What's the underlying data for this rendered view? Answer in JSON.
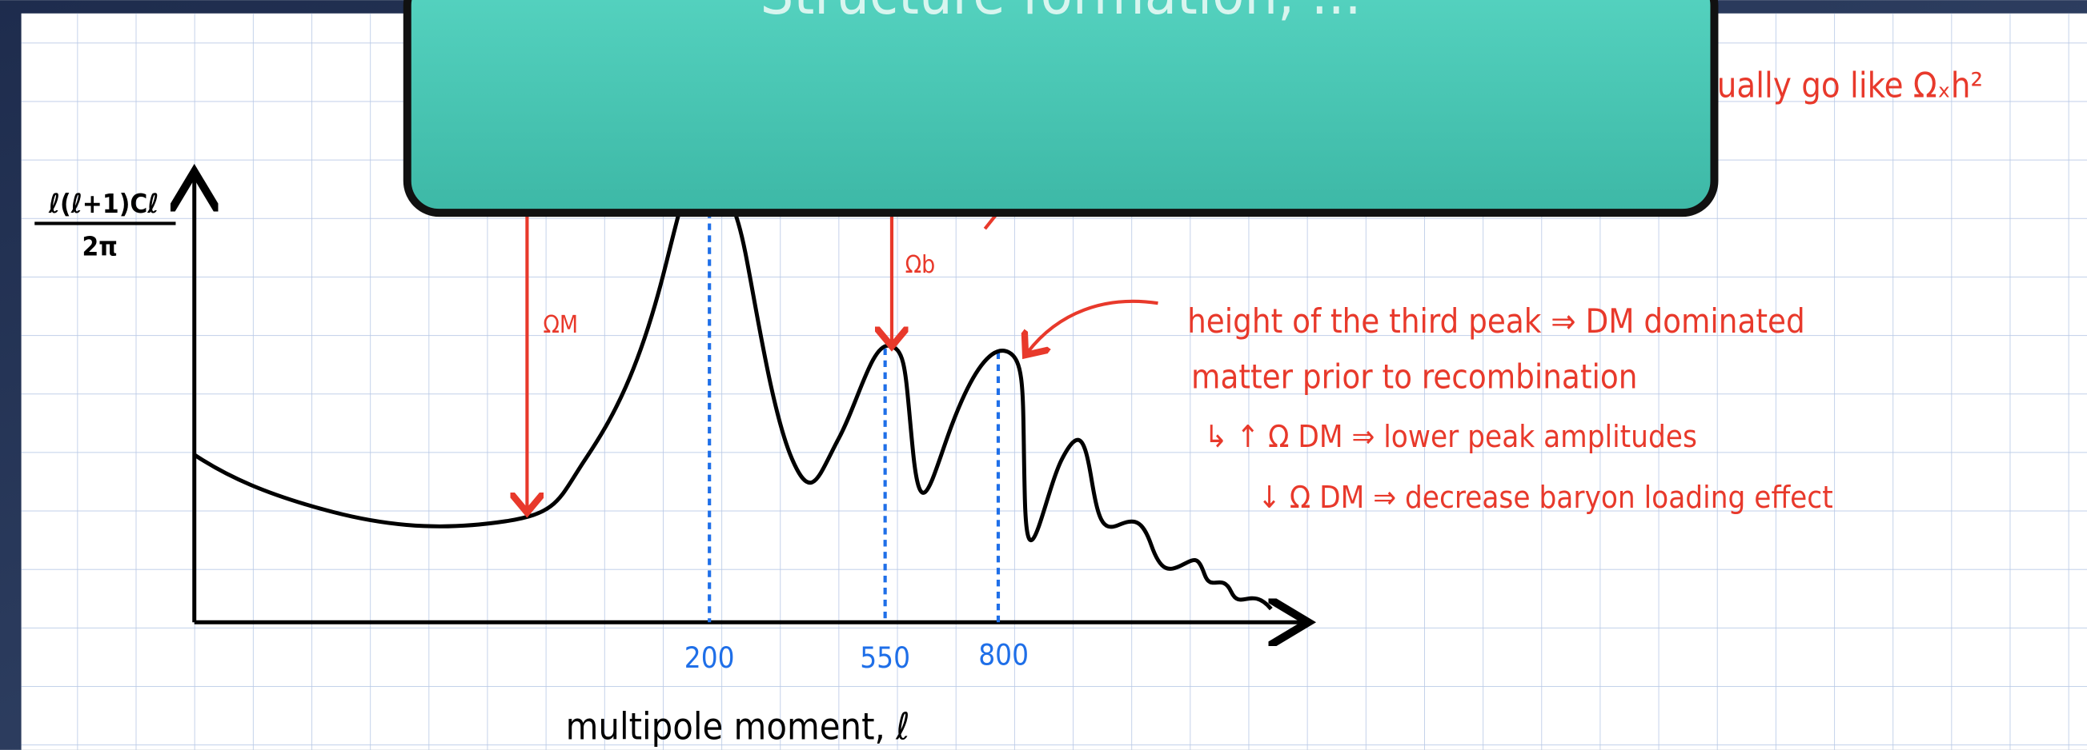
{
  "banner": {
    "title": "Structure formation, ..."
  },
  "notes": {
    "top": "ually  go  like  Ωₓh²",
    "lines": [
      "height  of  the  third  peak  ⇒  DM  dominated",
      "matter  prior   to  recombination",
      "↳  ↑ Ω DM  ⇒  lower peak amplitudes",
      "↓ Ω DM  ⇒  decrease  baryon loading effect"
    ]
  },
  "sketch": {
    "y_label_numerator": "ℓ(ℓ+1)Cℓ",
    "y_label_denominator": "2π",
    "x_label": "multipole  moment,  ℓ",
    "peak_labels": [
      "ΩM",
      "Ωb"
    ],
    "ticks": [
      "200",
      "550",
      "800"
    ]
  }
}
